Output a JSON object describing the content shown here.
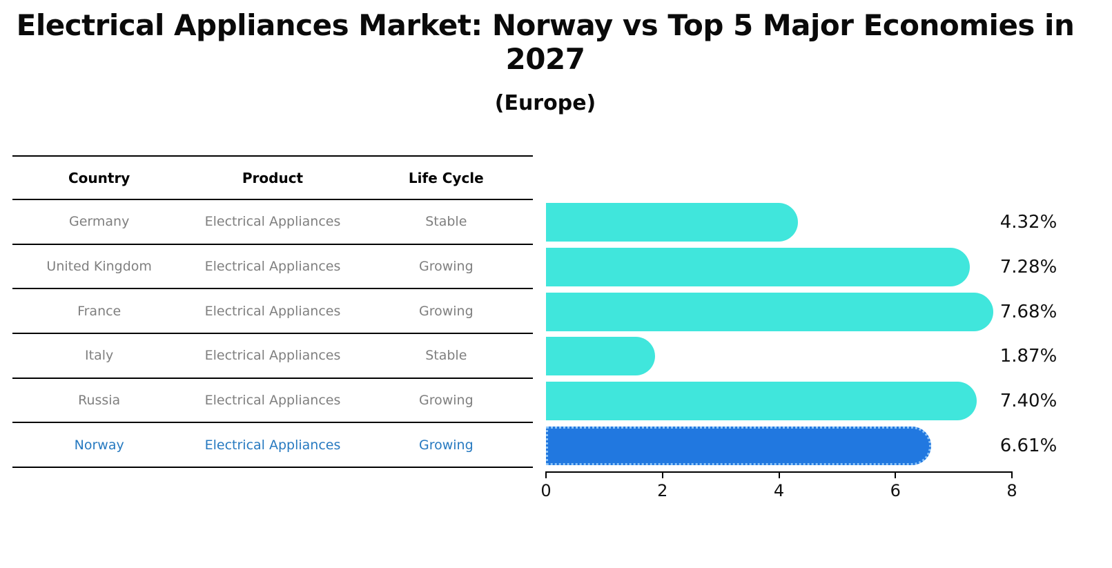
{
  "title": "Electrical Appliances Market: Norway vs Top 5 Major Economies in 2027",
  "subtitle": "(Europe)",
  "table": {
    "headers": [
      "Country",
      "Product",
      "Life Cycle"
    ],
    "rows": [
      {
        "country": "Germany",
        "product": "Electrical Appliances",
        "life_cycle": "Stable",
        "highlight": false
      },
      {
        "country": "United Kingdom",
        "product": "Electrical Appliances",
        "life_cycle": "Growing",
        "highlight": false
      },
      {
        "country": "France",
        "product": "Electrical Appliances",
        "life_cycle": "Growing",
        "highlight": false
      },
      {
        "country": "Italy",
        "product": "Electrical Appliances",
        "life_cycle": "Stable",
        "highlight": false
      },
      {
        "country": "Russia",
        "product": "Electrical Appliances",
        "life_cycle": "Growing",
        "highlight": false
      },
      {
        "country": "Norway",
        "product": "Electrical Appliances",
        "life_cycle": "Growing",
        "highlight": true
      }
    ]
  },
  "chart_data": {
    "type": "bar",
    "orientation": "horizontal",
    "title": "Electrical Appliances Market: Norway vs Top 5 Major Economies in 2027 (Europe)",
    "categories": [
      "Germany",
      "United Kingdom",
      "France",
      "Italy",
      "Russia",
      "Norway"
    ],
    "values": [
      4.32,
      7.28,
      7.68,
      1.87,
      7.4,
      6.61
    ],
    "labels": [
      "4.32%",
      "7.28%",
      "7.68%",
      "1.87%",
      "7.40%",
      "6.61%"
    ],
    "xlabel": "",
    "ylabel": "",
    "xlim": [
      0,
      8
    ],
    "xticks": [
      0,
      2,
      4,
      6,
      8
    ],
    "grid": false,
    "legend": false,
    "highlight_index": 5,
    "bar_color": "#40e6dc",
    "highlight_color": "#2178e0",
    "highlight_border_color": "#8ec5f8",
    "highlight_text_color": "#2679c0"
  }
}
